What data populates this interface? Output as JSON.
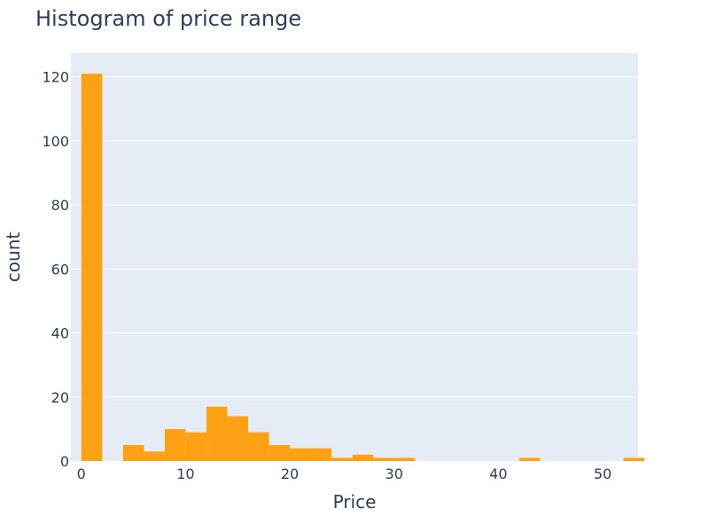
{
  "chart_data": {
    "type": "bar",
    "title": "Histogram of price range",
    "xlabel": "Price",
    "ylabel": "count",
    "bin_width": 2,
    "bins_start": [
      0,
      2,
      4,
      6,
      8,
      10,
      12,
      14,
      16,
      18,
      20,
      22,
      24,
      26,
      28,
      30,
      32,
      34,
      36,
      38,
      40,
      42,
      44,
      46,
      48,
      50,
      52
    ],
    "values": [
      121,
      0,
      5,
      3,
      10,
      9,
      17,
      14,
      9,
      5,
      4,
      4,
      1,
      2,
      1,
      1,
      0,
      0,
      0,
      0,
      0,
      1,
      0,
      0,
      0,
      0,
      1
    ],
    "xlim": [
      -1,
      53.4
    ],
    "ylim": [
      0,
      127.4
    ],
    "x_ticks": [
      0,
      10,
      20,
      30,
      40,
      50
    ],
    "x_tick_labels": [
      "0",
      "10",
      "20",
      "30",
      "40",
      "50"
    ],
    "y_ticks": [
      0,
      20,
      40,
      60,
      80,
      100,
      120
    ],
    "y_tick_labels": [
      "0",
      "20",
      "40",
      "60",
      "80",
      "100",
      "120"
    ],
    "grid": true,
    "colors": {
      "bar": "#ffa114",
      "plot_bg": "#e5ecf6",
      "grid": "#ffffff",
      "text": "#2a3f5f"
    }
  }
}
